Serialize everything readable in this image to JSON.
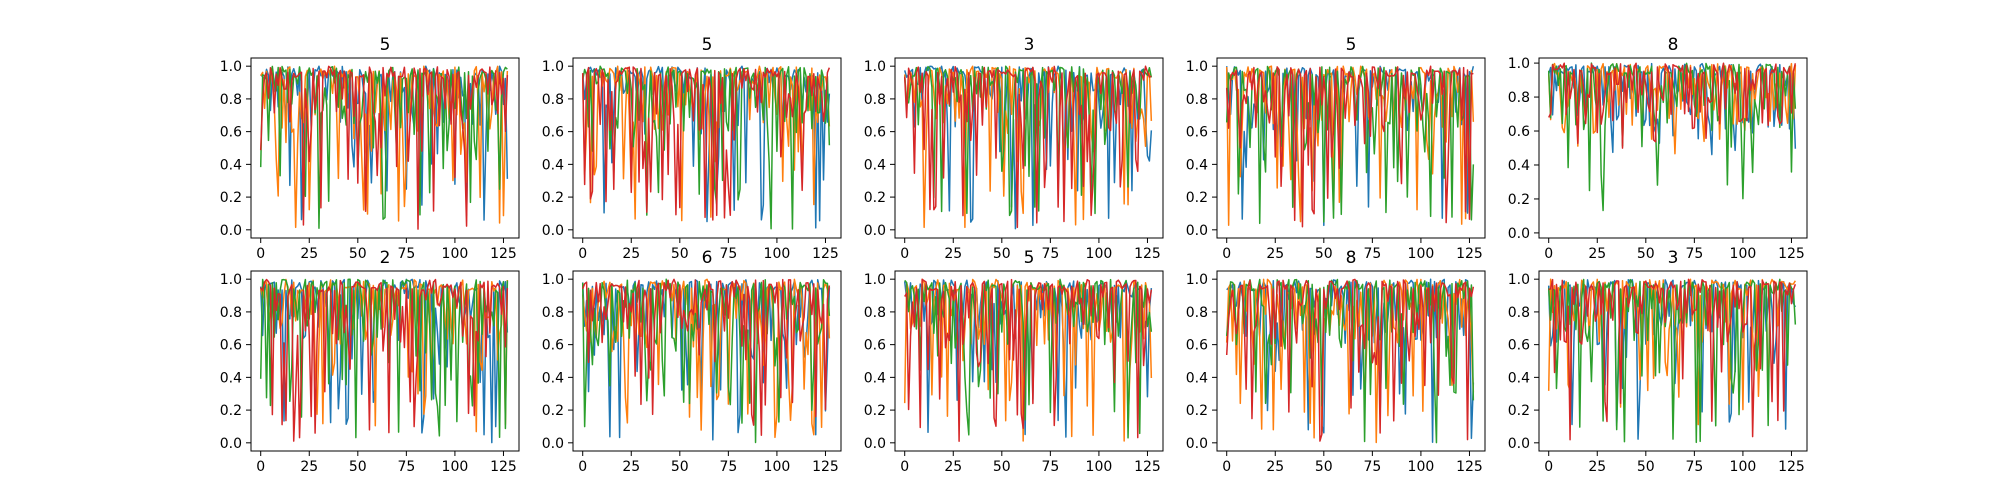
{
  "chart_data": [
    {
      "type": "line",
      "title": "5",
      "xlim": [
        -5,
        133
      ],
      "ylim": [
        -0.05,
        1.05
      ],
      "xticks": [
        0,
        25,
        50,
        75,
        100,
        125
      ],
      "xtick_labels": [
        "0",
        "25",
        "50",
        "75",
        "100",
        "125"
      ],
      "yticks": [
        0,
        0.2,
        0.4,
        0.6,
        0.8,
        1.0
      ],
      "ytick_labels": [
        "0.0",
        "0.2",
        "0.4",
        "0.6",
        "0.8",
        "1.0"
      ],
      "seed": 11,
      "low_scale": [
        1.0,
        1.0,
        1.0,
        1.0
      ]
    },
    {
      "type": "line",
      "title": "5",
      "xlim": [
        -5,
        133
      ],
      "ylim": [
        -0.05,
        1.05
      ],
      "xticks": [
        0,
        25,
        50,
        75,
        100,
        125
      ],
      "xtick_labels": [
        "0",
        "25",
        "50",
        "75",
        "100",
        "125"
      ],
      "yticks": [
        0,
        0.2,
        0.4,
        0.6,
        0.8,
        1.0
      ],
      "ytick_labels": [
        "0.0",
        "0.2",
        "0.4",
        "0.6",
        "0.8",
        "1.0"
      ],
      "seed": 23,
      "low_scale": [
        1.0,
        1.0,
        1.0,
        1.0
      ]
    },
    {
      "type": "line",
      "title": "3",
      "xlim": [
        -5,
        133
      ],
      "ylim": [
        -0.05,
        1.05
      ],
      "xticks": [
        0,
        25,
        50,
        75,
        100,
        125
      ],
      "xtick_labels": [
        "0",
        "25",
        "50",
        "75",
        "100",
        "125"
      ],
      "yticks": [
        0,
        0.2,
        0.4,
        0.6,
        0.8,
        1.0
      ],
      "ytick_labels": [
        "0.0",
        "0.2",
        "0.4",
        "0.6",
        "0.8",
        "1.0"
      ],
      "seed": 37,
      "low_scale": [
        1.0,
        1.0,
        1.0,
        1.0
      ]
    },
    {
      "type": "line",
      "title": "5",
      "xlim": [
        -5,
        133
      ],
      "ylim": [
        -0.05,
        1.05
      ],
      "xticks": [
        0,
        25,
        50,
        75,
        100,
        125
      ],
      "xtick_labels": [
        "0",
        "25",
        "50",
        "75",
        "100",
        "125"
      ],
      "yticks": [
        0,
        0.2,
        0.4,
        0.6,
        0.8,
        1.0
      ],
      "ytick_labels": [
        "0.0",
        "0.2",
        "0.4",
        "0.6",
        "0.8",
        "1.0"
      ],
      "seed": 41,
      "low_scale": [
        1.0,
        1.0,
        1.0,
        1.0
      ]
    },
    {
      "type": "line",
      "title": "8",
      "xlim": [
        -5,
        133
      ],
      "ylim": [
        -0.03,
        1.03
      ],
      "xticks": [
        0,
        25,
        50,
        75,
        100,
        125
      ],
      "xtick_labels": [
        "0",
        "25",
        "50",
        "75",
        "100",
        "125"
      ],
      "yticks": [
        0,
        0.2,
        0.4,
        0.6,
        0.8,
        1.0
      ],
      "ytick_labels": [
        "0.0",
        "0.2",
        "0.4",
        "0.6",
        "0.8",
        "1.0"
      ],
      "seed": 53,
      "low_scale": [
        0.55,
        0.55,
        0.9,
        0.55
      ]
    },
    {
      "type": "line",
      "title": "2",
      "xlim": [
        -5,
        133
      ],
      "ylim": [
        -0.05,
        1.05
      ],
      "xticks": [
        0,
        25,
        50,
        75,
        100,
        125
      ],
      "xtick_labels": [
        "0",
        "25",
        "50",
        "75",
        "100",
        "125"
      ],
      "yticks": [
        0,
        0.2,
        0.4,
        0.6,
        0.8,
        1.0
      ],
      "ytick_labels": [
        "0.0",
        "0.2",
        "0.4",
        "0.6",
        "0.8",
        "1.0"
      ],
      "seed": 67,
      "low_scale": [
        1.0,
        1.0,
        1.0,
        1.0
      ]
    },
    {
      "type": "line",
      "title": "6",
      "xlim": [
        -5,
        133
      ],
      "ylim": [
        -0.05,
        1.05
      ],
      "xticks": [
        0,
        25,
        50,
        75,
        100,
        125
      ],
      "xtick_labels": [
        "0",
        "25",
        "50",
        "75",
        "100",
        "125"
      ],
      "yticks": [
        0,
        0.2,
        0.4,
        0.6,
        0.8,
        1.0
      ],
      "ytick_labels": [
        "0.0",
        "0.2",
        "0.4",
        "0.6",
        "0.8",
        "1.0"
      ],
      "seed": 71,
      "low_scale": [
        1.0,
        1.0,
        1.0,
        1.0
      ]
    },
    {
      "type": "line",
      "title": "5",
      "xlim": [
        -5,
        133
      ],
      "ylim": [
        -0.05,
        1.05
      ],
      "xticks": [
        0,
        25,
        50,
        75,
        100,
        125
      ],
      "xtick_labels": [
        "0",
        "25",
        "50",
        "75",
        "100",
        "125"
      ],
      "yticks": [
        0,
        0.2,
        0.4,
        0.6,
        0.8,
        1.0
      ],
      "ytick_labels": [
        "0.0",
        "0.2",
        "0.4",
        "0.6",
        "0.8",
        "1.0"
      ],
      "seed": 83,
      "low_scale": [
        1.0,
        1.0,
        1.0,
        1.0
      ]
    },
    {
      "type": "line",
      "title": "8",
      "xlim": [
        -5,
        133
      ],
      "ylim": [
        -0.05,
        1.05
      ],
      "xticks": [
        0,
        25,
        50,
        75,
        100,
        125
      ],
      "xtick_labels": [
        "0",
        "25",
        "50",
        "75",
        "100",
        "125"
      ],
      "yticks": [
        0,
        0.2,
        0.4,
        0.6,
        0.8,
        1.0
      ],
      "ytick_labels": [
        "0.0",
        "0.2",
        "0.4",
        "0.6",
        "0.8",
        "1.0"
      ],
      "seed": 97,
      "low_scale": [
        1.0,
        1.0,
        1.0,
        1.0
      ]
    },
    {
      "type": "line",
      "title": "3",
      "xlim": [
        -5,
        133
      ],
      "ylim": [
        -0.05,
        1.05
      ],
      "xticks": [
        0,
        25,
        50,
        75,
        100,
        125
      ],
      "xtick_labels": [
        "0",
        "25",
        "50",
        "75",
        "100",
        "125"
      ],
      "yticks": [
        0,
        0.2,
        0.4,
        0.6,
        0.8,
        1.0
      ],
      "ytick_labels": [
        "0.0",
        "0.2",
        "0.4",
        "0.6",
        "0.8",
        "1.0"
      ],
      "seed": 101,
      "low_scale": [
        1.0,
        1.0,
        1.0,
        1.0
      ]
    }
  ],
  "series_colors": [
    "#1f77b4",
    "#ff7f0e",
    "#2ca02c",
    "#d62728"
  ],
  "points_per_series": 128,
  "grid": false,
  "legend": "none"
}
